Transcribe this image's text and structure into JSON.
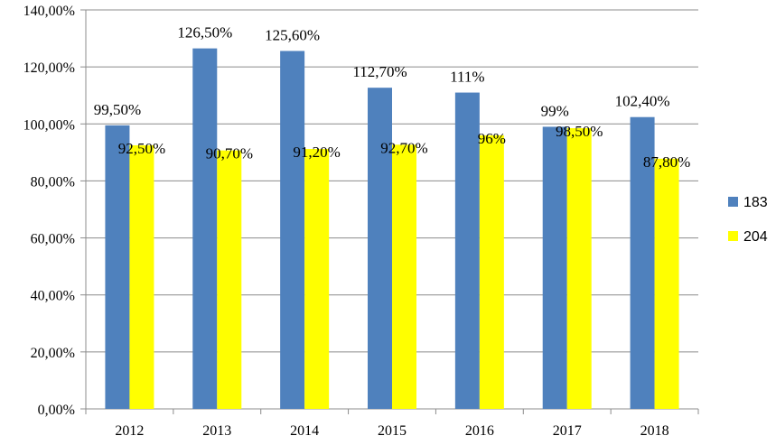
{
  "chart_data": {
    "type": "bar",
    "categories": [
      "2012",
      "2013",
      "2014",
      "2015",
      "2016",
      "2017",
      "2018"
    ],
    "series": [
      {
        "name": "183",
        "color": "#4f81bd",
        "values": [
          99.5,
          126.5,
          125.6,
          112.7,
          111,
          99,
          102.4
        ],
        "labels": [
          "99,50%",
          "126,50%",
          "125,60%",
          "112,70%",
          "111%",
          "99%",
          "102,40%"
        ]
      },
      {
        "name": "204",
        "color": "#ffff00",
        "values": [
          92.5,
          90.7,
          91.2,
          92.7,
          96,
          98.5,
          87.8
        ],
        "labels": [
          "92,50%",
          "90,70%",
          "91,20%",
          "92,70%",
          "96%",
          "98,50%",
          "87,80%"
        ]
      }
    ],
    "y_ticks": [
      0,
      20,
      40,
      60,
      80,
      100,
      120,
      140
    ],
    "y_tick_labels": [
      "0,00%",
      "20,00%",
      "40,00%",
      "60,00%",
      "80,00%",
      "100,00%",
      "120,00%",
      "140,00%"
    ],
    "ylim": [
      0,
      140
    ],
    "grid": true,
    "legend": "right",
    "title": "",
    "xlabel": "",
    "ylabel": ""
  }
}
